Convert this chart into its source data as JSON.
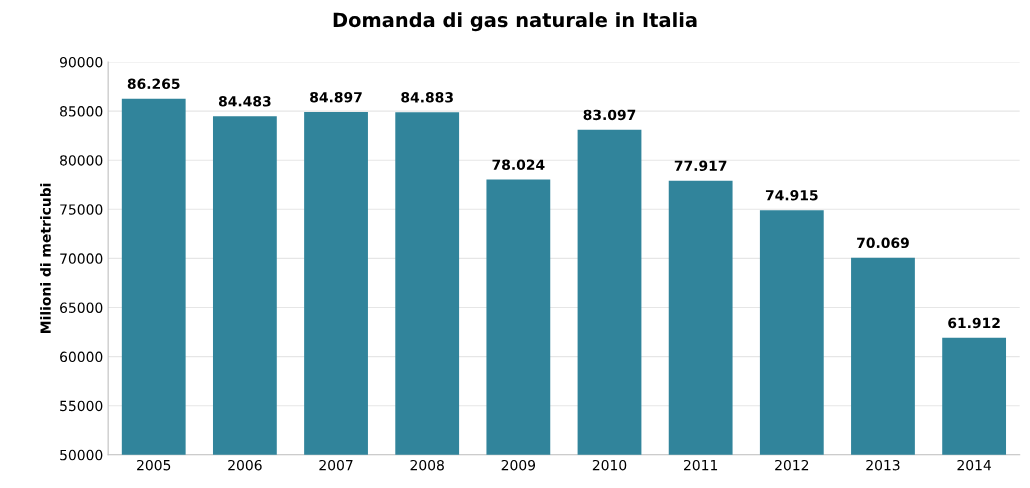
{
  "chart_data": {
    "type": "bar",
    "title": "Domanda di gas naturale in Italia",
    "ylabel": "Milioni di metricubi",
    "categories": [
      "2005",
      "2006",
      "2007",
      "2008",
      "2009",
      "2010",
      "2011",
      "2012",
      "2013",
      "2014"
    ],
    "values": [
      86265,
      84483,
      84897,
      84883,
      78024,
      83097,
      77917,
      74915,
      70069,
      61912
    ],
    "value_labels": [
      "86.265",
      "84.483",
      "84.897",
      "84.883",
      "78.024",
      "83.097",
      "77.917",
      "74.915",
      "70.069",
      "61.912"
    ],
    "color": "#31849b",
    "ylim": [
      50000,
      90000
    ],
    "yticks": [
      50000,
      55000,
      60000,
      65000,
      70000,
      75000,
      80000,
      85000,
      90000
    ],
    "grid": "y",
    "legend": false
  }
}
